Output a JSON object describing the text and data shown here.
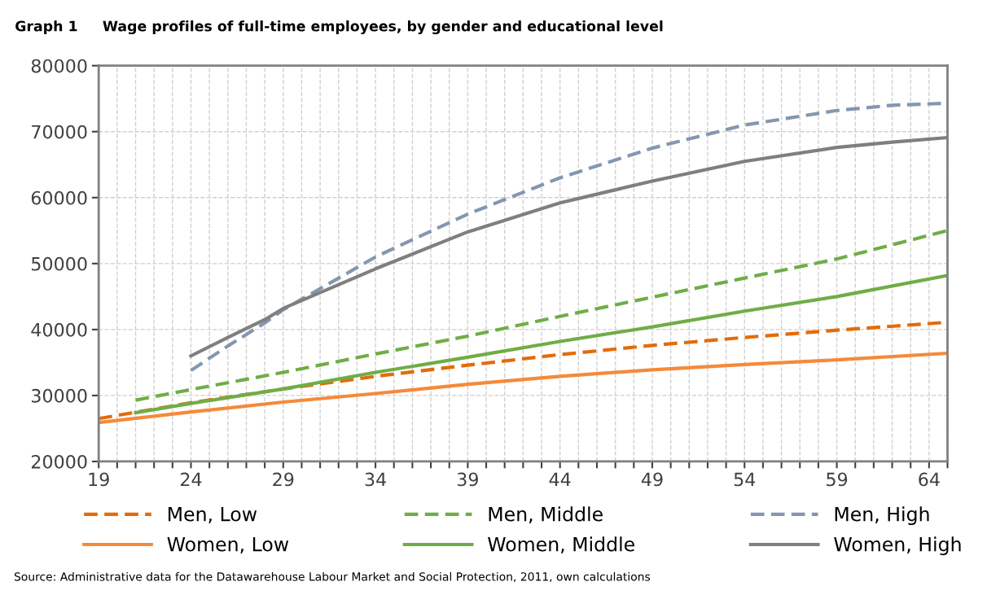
{
  "chart_data": {
    "type": "line",
    "title": "Graph 1     Wage profiles of full-time employees, by gender and educational level",
    "xlim": [
      19,
      65
    ],
    "ylim": [
      20000,
      80000
    ],
    "xticks": [
      19,
      {
        "value": 20,
        "label": null
      },
      {
        "value": 21,
        "label": null
      },
      {
        "value": 22,
        "label": null
      },
      {
        "value": 23,
        "label": null
      },
      24,
      {
        "value": 25,
        "label": null
      },
      {
        "value": 26,
        "label": null
      },
      {
        "value": 27,
        "label": null
      },
      {
        "value": 28,
        "label": null
      },
      29,
      {
        "value": 30,
        "label": null
      },
      {
        "value": 31,
        "label": null
      },
      {
        "value": 32,
        "label": null
      },
      {
        "value": 33,
        "label": null
      },
      34,
      {
        "value": 35,
        "label": null
      },
      {
        "value": 36,
        "label": null
      },
      {
        "value": 37,
        "label": null
      },
      {
        "value": 38,
        "label": null
      },
      39,
      {
        "value": 40,
        "label": null
      },
      {
        "value": 41,
        "label": null
      },
      {
        "value": 42,
        "label": null
      },
      {
        "value": 43,
        "label": null
      },
      44,
      {
        "value": 45,
        "label": null
      },
      {
        "value": 46,
        "label": null
      },
      {
        "value": 47,
        "label": null
      },
      {
        "value": 48,
        "label": null
      },
      49,
      {
        "value": 50,
        "label": null
      },
      {
        "value": 51,
        "label": null
      },
      {
        "value": 52,
        "label": null
      },
      {
        "value": 53,
        "label": null
      },
      54,
      {
        "value": 55,
        "label": null
      },
      {
        "value": 56,
        "label": null
      },
      {
        "value": 57,
        "label": null
      },
      {
        "value": 58,
        "label": null
      },
      59,
      {
        "value": 60,
        "label": null
      },
      {
        "value": 61,
        "label": null
      },
      {
        "value": 62,
        "label": null
      },
      {
        "value": 63,
        "label": null
      },
      64,
      {
        "value": 65,
        "label": null
      }
    ],
    "yticks": [
      20000,
      30000,
      40000,
      50000,
      60000,
      70000,
      80000
    ],
    "grid": true,
    "legend": "bottom",
    "marker": "none",
    "series": [
      {
        "name": "Men, Low",
        "color": "#e36c09",
        "line_style": "dashed",
        "x": [
          19,
          24,
          29,
          34,
          39,
          44,
          49,
          54,
          59,
          65
        ],
        "values": [
          26500,
          28900,
          31000,
          32900,
          34600,
          36200,
          37600,
          38800,
          39900,
          41100
        ]
      },
      {
        "name": "Women, Low",
        "color": "#f58a3a",
        "line_style": "solid",
        "x": [
          19,
          24,
          29,
          34,
          39,
          44,
          49,
          54,
          59,
          65
        ],
        "values": [
          25900,
          27500,
          29000,
          30300,
          31700,
          32900,
          33900,
          34700,
          35400,
          36400
        ]
      },
      {
        "name": "Men, Middle",
        "color": "#70ad47",
        "line_style": "dashed",
        "x": [
          21,
          24,
          29,
          34,
          39,
          44,
          49,
          54,
          59,
          65
        ],
        "values": [
          29300,
          30900,
          33500,
          36300,
          39000,
          42000,
          44900,
          47800,
          50700,
          55000
        ]
      },
      {
        "name": "Women, Middle",
        "color": "#70ad47",
        "line_style": "solid",
        "x": [
          21,
          24,
          29,
          34,
          39,
          44,
          49,
          54,
          59,
          65
        ],
        "values": [
          27400,
          28800,
          31000,
          33500,
          35800,
          38200,
          40400,
          42800,
          45000,
          48200
        ]
      },
      {
        "name": "Men, High",
        "color": "#8497b0",
        "line_style": "dashed",
        "x": [
          24,
          26,
          28,
          29,
          34,
          39,
          44,
          49,
          54,
          59,
          62,
          65
        ],
        "values": [
          33800,
          37500,
          41000,
          43000,
          51000,
          57500,
          63000,
          67500,
          71000,
          73200,
          74000,
          74300
        ]
      },
      {
        "name": "Women, High",
        "color": "#7f7f7f",
        "line_style": "solid",
        "x": [
          24,
          26,
          28,
          29,
          34,
          39,
          44,
          49,
          54,
          59,
          62,
          65
        ],
        "values": [
          36000,
          38800,
          41500,
          43200,
          49200,
          54800,
          59200,
          62500,
          65500,
          67600,
          68400,
          69100
        ]
      }
    ],
    "annotations": [
      "Source: Administrative data for the Datawarehouse Labour Market and Social Protection, 2011, own calculations"
    ]
  }
}
